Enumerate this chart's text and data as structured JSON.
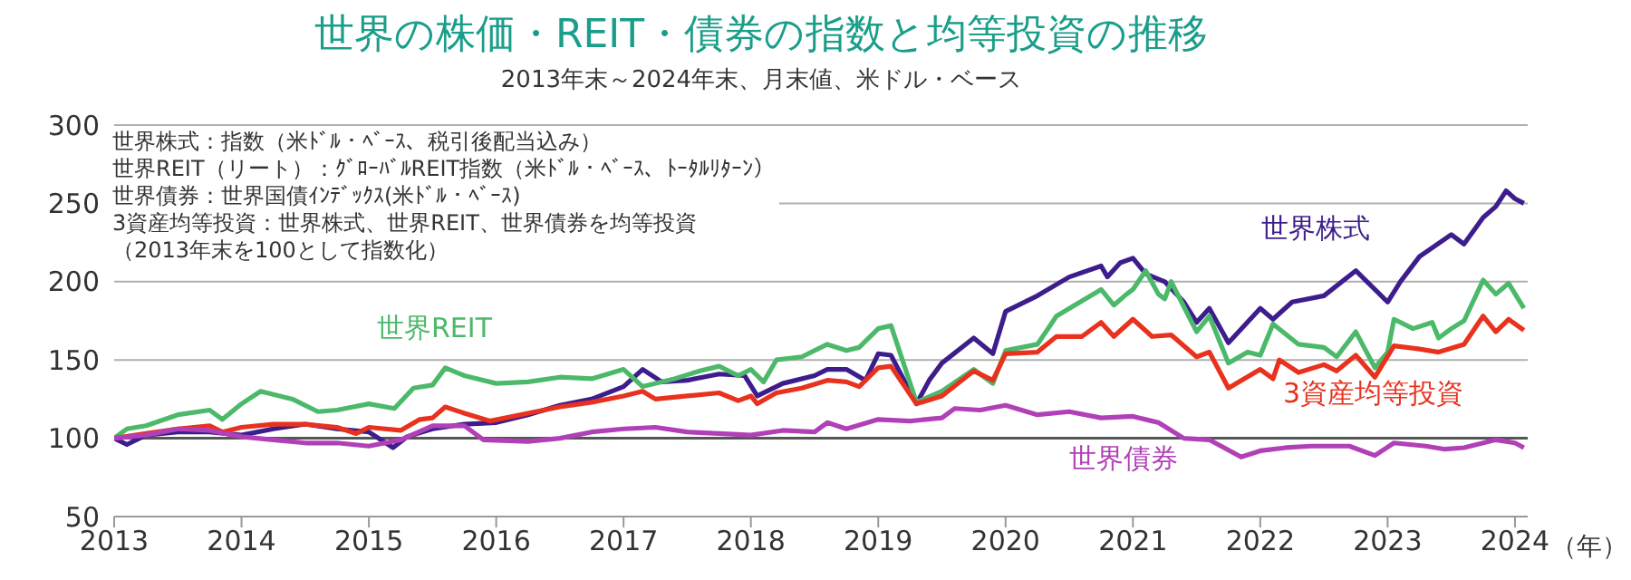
{
  "chart_data": {
    "type": "line",
    "title": "世界の株価・REIT・債券の指数と均等投資の推移",
    "subtitle": "2013年末～2024年末、月末値、米ドル・ベース",
    "xlabel": "（年）",
    "annotations": [
      "世界株式：指数（米ﾄﾞﾙ・ﾍﾞｰｽ、税引後配当込み）",
      "世界REIT（リート）：ｸﾞﾛｰﾊﾞﾙREIT指数（米ﾄﾞﾙ・ﾍﾞｰｽ、ﾄｰﾀﾙﾘﾀｰﾝ）",
      "世界債券：世界国債ｲﾝﾃﾞｯｸｽ(米ﾄﾞﾙ・ﾍﾞｰｽ)",
      "3資産均等投資：世界株式、世界REIT、世界債券を均等投資",
      "（2013年末を100として指数化）"
    ],
    "xlim": [
      2013,
      2024.1
    ],
    "xticks": [
      2013,
      2014,
      2015,
      2016,
      2017,
      2018,
      2019,
      2020,
      2021,
      2022,
      2023,
      2024
    ],
    "ylim": [
      50,
      300
    ],
    "yticks": [
      50,
      100,
      150,
      200,
      250,
      300
    ],
    "grid": "y",
    "marker": "none",
    "line_style": "solid",
    "ref_lines": [
      {
        "axis": "y",
        "value": 100,
        "color": "#555555"
      }
    ],
    "series": [
      {
        "name": "世界株式",
        "color": "#3d1d8c",
        "x": [
          2013,
          2013.1,
          2013.25,
          2013.5,
          2013.75,
          2014,
          2014.25,
          2014.5,
          2014.75,
          2015,
          2015.19,
          2015.3,
          2015.5,
          2015.75,
          2016,
          2016.25,
          2016.5,
          2016.75,
          2017,
          2017.15,
          2017.3,
          2017.5,
          2017.75,
          2017.95,
          2018.05,
          2018.25,
          2018.5,
          2018.6,
          2018.75,
          2018.9,
          2019,
          2019.1,
          2019.3,
          2019.4,
          2019.5,
          2019.75,
          2019.9,
          2020,
          2020.25,
          2020.5,
          2020.75,
          2020.8,
          2020.9,
          2021,
          2021.1,
          2021.25,
          2021.4,
          2021.5,
          2021.6,
          2021.75,
          2022,
          2022.1,
          2022.25,
          2022.5,
          2022.75,
          2023,
          2023.1,
          2023.25,
          2023.5,
          2023.6,
          2023.75,
          2023.85,
          2023.93,
          2024,
          2024.07
        ],
        "values": [
          100,
          96,
          102,
          104,
          104,
          102,
          106,
          109,
          106,
          104,
          94,
          101,
          106,
          109,
          110,
          115,
          121,
          125,
          133,
          144,
          136,
          137,
          141,
          140,
          127,
          135,
          140,
          144,
          144,
          137,
          154,
          153,
          122,
          137,
          148,
          164,
          154,
          181,
          191,
          203,
          210,
          203,
          212,
          215,
          205,
          200,
          187,
          174,
          183,
          161,
          183,
          176,
          187,
          191,
          207,
          187,
          200,
          216,
          230,
          224,
          241,
          248,
          258,
          253,
          250
        ]
      },
      {
        "name": "世界REIT",
        "color": "#4cb96a",
        "x": [
          2013,
          2013.1,
          2013.25,
          2013.5,
          2013.75,
          2013.85,
          2014,
          2014.15,
          2014.4,
          2014.6,
          2014.75,
          2015,
          2015.2,
          2015.35,
          2015.5,
          2015.6,
          2015.75,
          2016,
          2016.25,
          2016.5,
          2016.75,
          2017,
          2017.15,
          2017.4,
          2017.6,
          2017.75,
          2017.9,
          2018,
          2018.1,
          2018.2,
          2018.4,
          2018.6,
          2018.75,
          2018.85,
          2019,
          2019.1,
          2019.3,
          2019.5,
          2019.75,
          2019.9,
          2020,
          2020.25,
          2020.4,
          2020.75,
          2020.85,
          2020.95,
          2021,
          2021.1,
          2021.2,
          2021.25,
          2021.3,
          2021.5,
          2021.6,
          2021.75,
          2021.9,
          2022,
          2022.1,
          2022.3,
          2022.5,
          2022.6,
          2022.75,
          2022.9,
          2023,
          2023.05,
          2023.2,
          2023.35,
          2023.4,
          2023.5,
          2023.6,
          2023.75,
          2023.85,
          2023.95,
          2024.07
        ],
        "values": [
          100,
          106,
          108,
          115,
          118,
          112,
          122,
          130,
          125,
          117,
          118,
          122,
          119,
          132,
          134,
          145,
          140,
          135,
          136,
          139,
          138,
          144,
          133,
          138,
          143,
          146,
          140,
          144,
          136,
          150,
          152,
          160,
          156,
          158,
          170,
          172,
          123,
          130,
          144,
          135,
          156,
          160,
          178,
          195,
          185,
          192,
          195,
          207,
          192,
          189,
          200,
          168,
          178,
          148,
          155,
          153,
          173,
          160,
          158,
          152,
          168,
          145,
          155,
          176,
          170,
          174,
          164,
          170,
          175,
          201,
          192,
          199,
          183
        ]
      },
      {
        "name": "3資産均等投資",
        "color": "#e8321e",
        "x": [
          2013,
          2013.25,
          2013.5,
          2013.75,
          2013.85,
          2014,
          2014.25,
          2014.5,
          2014.75,
          2014.9,
          2015,
          2015.25,
          2015.4,
          2015.5,
          2015.6,
          2015.75,
          2015.95,
          2016.25,
          2016.5,
          2016.75,
          2017,
          2017.15,
          2017.25,
          2017.5,
          2017.75,
          2017.9,
          2018,
          2018.05,
          2018.2,
          2018.4,
          2018.6,
          2018.75,
          2018.85,
          2019,
          2019.1,
          2019.3,
          2019.5,
          2019.75,
          2019.9,
          2020,
          2020.25,
          2020.4,
          2020.6,
          2020.75,
          2020.85,
          2021,
          2021.15,
          2021.3,
          2021.5,
          2021.6,
          2021.75,
          2022,
          2022.1,
          2022.15,
          2022.3,
          2022.5,
          2022.6,
          2022.75,
          2022.9,
          2023.05,
          2023.25,
          2023.4,
          2023.6,
          2023.75,
          2023.85,
          2023.95,
          2024.07
        ],
        "values": [
          100,
          103,
          106,
          108,
          104,
          107,
          109,
          109,
          107,
          103,
          107,
          105,
          112,
          113,
          120,
          116,
          111,
          116,
          120,
          123,
          127,
          130,
          125,
          127,
          129,
          124,
          127,
          122,
          129,
          132,
          137,
          136,
          133,
          145,
          146,
          122,
          127,
          143,
          137,
          154,
          155,
          165,
          165,
          174,
          165,
          176,
          165,
          166,
          152,
          155,
          132,
          144,
          138,
          150,
          142,
          147,
          143,
          153,
          139,
          159,
          157,
          155,
          160,
          178,
          168,
          176,
          169
        ]
      },
      {
        "name": "世界債券",
        "color": "#b140b8",
        "x": [
          2013,
          2013.25,
          2013.5,
          2013.75,
          2014,
          2014.25,
          2014.5,
          2014.75,
          2015,
          2015.25,
          2015.5,
          2015.75,
          2015.9,
          2016.25,
          2016.5,
          2016.75,
          2017,
          2017.25,
          2017.5,
          2017.75,
          2018,
          2018.25,
          2018.5,
          2018.6,
          2018.75,
          2019,
          2019.25,
          2019.5,
          2019.6,
          2019.8,
          2020,
          2020.25,
          2020.5,
          2020.75,
          2021,
          2021.2,
          2021.4,
          2021.6,
          2021.85,
          2022,
          2022.2,
          2022.4,
          2022.7,
          2022.9,
          2023.05,
          2023.3,
          2023.45,
          2023.6,
          2023.85,
          2024,
          2024.07
        ],
        "values": [
          100,
          102,
          106,
          105,
          101,
          99,
          97,
          97,
          95,
          99,
          108,
          108,
          99,
          98,
          100,
          104,
          106,
          107,
          104,
          103,
          102,
          105,
          104,
          110,
          106,
          112,
          111,
          113,
          119,
          118,
          121,
          115,
          117,
          113,
          114,
          110,
          100,
          99,
          88,
          92,
          94,
          95,
          95,
          89,
          97,
          95,
          93,
          94,
          99,
          97,
          94
        ]
      }
    ]
  }
}
